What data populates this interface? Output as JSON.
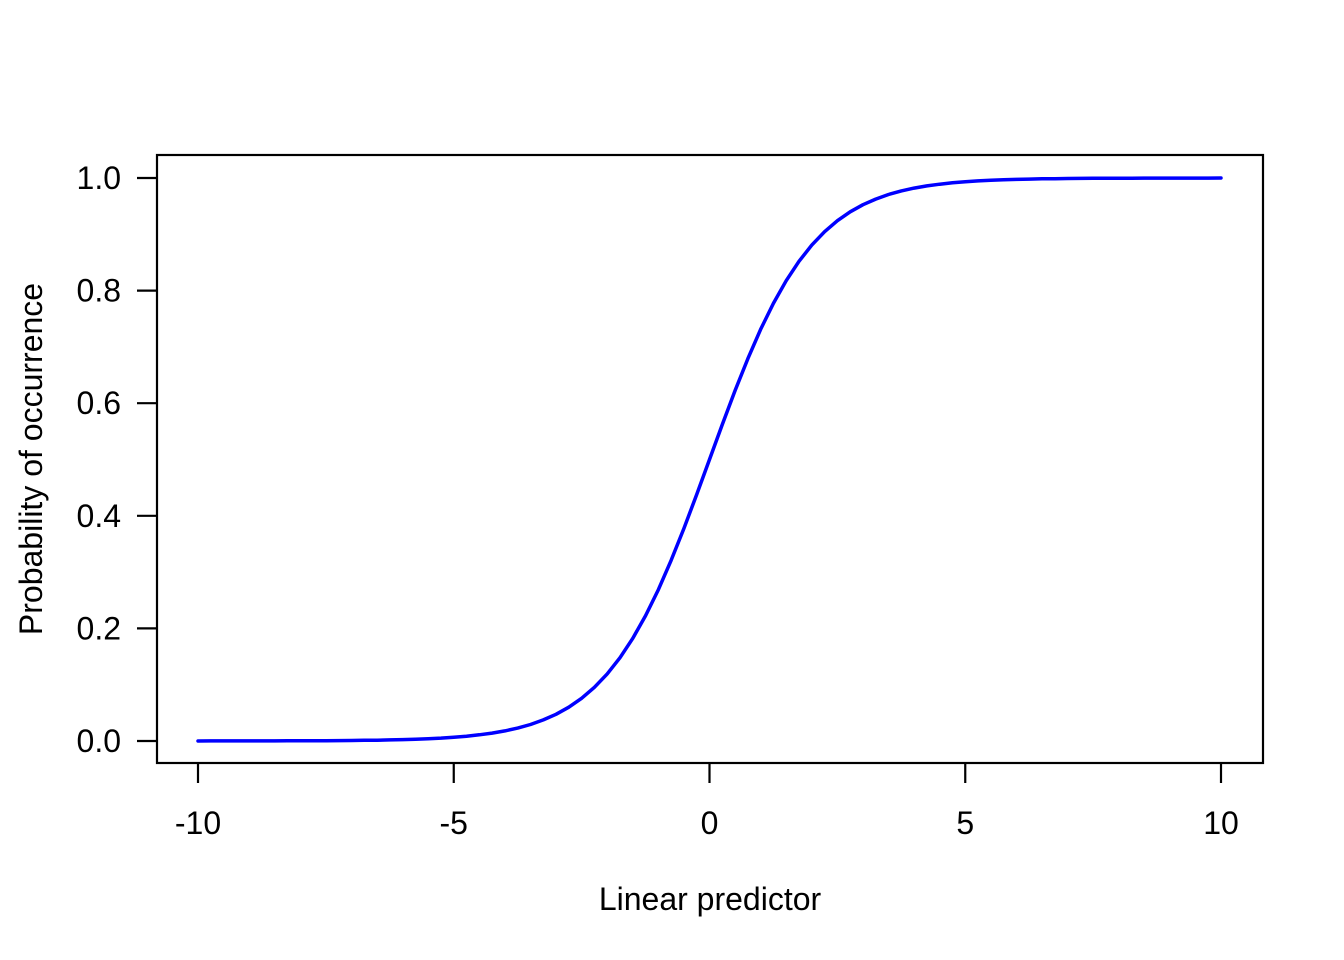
{
  "chart_data": {
    "type": "line",
    "title": "",
    "xlabel": "Linear predictor",
    "ylabel": "Probability of occurrence",
    "xlim": [
      -10,
      10
    ],
    "ylim": [
      0,
      1
    ],
    "x_ticks": [
      -10,
      -5,
      0,
      5,
      10
    ],
    "x_tick_labels": [
      "-10",
      "-5",
      "0",
      "5",
      "10"
    ],
    "y_ticks": [
      0,
      0.2,
      0.4,
      0.6,
      0.8,
      1
    ],
    "y_tick_labels": [
      "0.0",
      "0.2",
      "0.4",
      "0.6",
      "0.8",
      "1.0"
    ],
    "grid": false,
    "legend": null,
    "line_color": "#0000FF",
    "axis_color": "#000000",
    "background_color": "#FFFFFF",
    "series": [
      {
        "name": "logistic-curve",
        "x": [
          -10,
          -9.75,
          -9.5,
          -9.25,
          -9,
          -8.75,
          -8.5,
          -8.25,
          -8,
          -7.75,
          -7.5,
          -7.25,
          -7,
          -6.75,
          -6.5,
          -6.25,
          -6,
          -5.75,
          -5.5,
          -5.25,
          -5,
          -4.75,
          -4.5,
          -4.25,
          -4,
          -3.75,
          -3.5,
          -3.25,
          -3,
          -2.75,
          -2.5,
          -2.25,
          -2,
          -1.75,
          -1.5,
          -1.25,
          -1,
          -0.75,
          -0.5,
          -0.25,
          0,
          0.25,
          0.5,
          0.75,
          1,
          1.25,
          1.5,
          1.75,
          2,
          2.25,
          2.5,
          2.75,
          3,
          3.25,
          3.5,
          3.75,
          4,
          4.25,
          4.5,
          4.75,
          5,
          5.25,
          5.5,
          5.75,
          6,
          6.25,
          6.5,
          6.75,
          7,
          7.25,
          7.5,
          7.75,
          8,
          8.25,
          8.5,
          8.75,
          9,
          9.25,
          9.5,
          9.75,
          10
        ],
        "y": [
          0.0,
          0.0001,
          0.0001,
          0.0001,
          0.0001,
          0.0002,
          0.0002,
          0.0003,
          0.0003,
          0.0004,
          0.0006,
          0.0007,
          0.0009,
          0.0012,
          0.0015,
          0.0019,
          0.0025,
          0.0032,
          0.0041,
          0.0052,
          0.0067,
          0.0086,
          0.011,
          0.0141,
          0.018,
          0.023,
          0.0293,
          0.0374,
          0.0474,
          0.0601,
          0.0759,
          0.0953,
          0.1192,
          0.148,
          0.1824,
          0.2227,
          0.2689,
          0.3208,
          0.3775,
          0.4378,
          0.5,
          0.5622,
          0.6225,
          0.6792,
          0.7311,
          0.7773,
          0.8176,
          0.852,
          0.8808,
          0.9047,
          0.9241,
          0.9399,
          0.9526,
          0.9626,
          0.9707,
          0.977,
          0.982,
          0.9859,
          0.989,
          0.9914,
          0.9933,
          0.9948,
          0.9959,
          0.9968,
          0.9975,
          0.9981,
          0.9985,
          0.9988,
          0.9991,
          0.9993,
          0.9994,
          0.9996,
          0.9997,
          0.9997,
          0.9998,
          0.9998,
          0.9999,
          0.9999,
          0.9999,
          0.9999,
          1.0
        ]
      }
    ]
  }
}
